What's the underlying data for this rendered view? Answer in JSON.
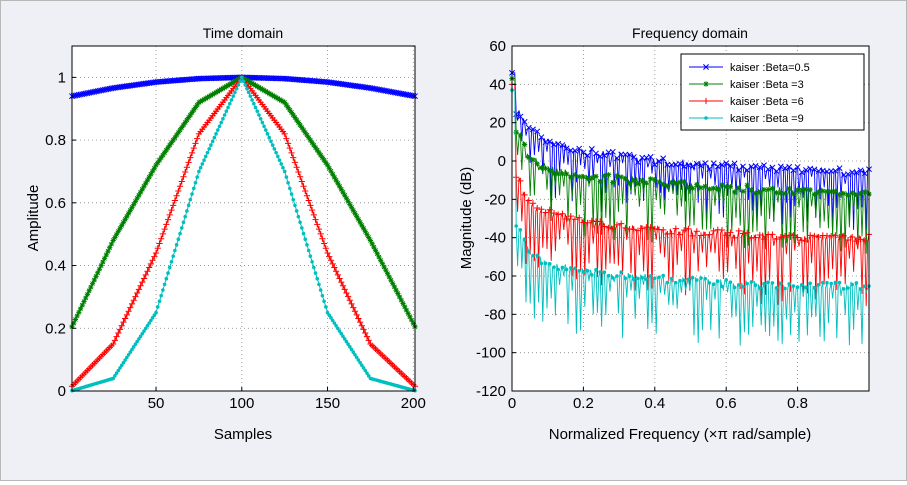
{
  "colors": {
    "beta_05": "#0000ff",
    "beta_3": "#008000",
    "beta_6": "#ff0000",
    "beta_9": "#00bfbf",
    "background": "#eef0f6"
  },
  "chart_data": [
    {
      "type": "line",
      "title": "Time domain",
      "xlabel": "Samples",
      "ylabel": "Amplitude",
      "xlim": [
        1,
        201
      ],
      "ylim": [
        0,
        1.1
      ],
      "xticks": [
        50,
        100,
        150,
        200
      ],
      "yticks": [
        0,
        0.2,
        0.4,
        0.6,
        0.8,
        1
      ],
      "grid": true,
      "x_range": [
        1,
        201
      ],
      "series": [
        {
          "name": "kaiser :Beta=0.5",
          "color": "#0000ff",
          "marker": "x",
          "values": {
            "x": [
              1,
              25,
              50,
              75,
              100,
              125,
              150,
              175,
              201
            ],
            "y": [
              0.94,
              0.966,
              0.985,
              0.996,
              1,
              0.996,
              0.985,
              0.966,
              0.94
            ]
          }
        },
        {
          "name": "kaiser :Beta =3",
          "color": "#008000",
          "marker": "*",
          "values": {
            "x": [
              1,
              25,
              50,
              75,
              100,
              125,
              150,
              175,
              201
            ],
            "y": [
              0.205,
              0.48,
              0.72,
              0.92,
              1,
              0.92,
              0.72,
              0.48,
              0.205
            ]
          }
        },
        {
          "name": "kaiser :Beta =6",
          "color": "#ff0000",
          "marker": "+",
          "values": {
            "x": [
              1,
              25,
              50,
              75,
              100,
              125,
              150,
              175,
              201
            ],
            "y": [
              0.015,
              0.15,
              0.44,
              0.82,
              1,
              0.82,
              0.44,
              0.15,
              0.015
            ]
          }
        },
        {
          "name": "kaiser :Beta =9",
          "color": "#00bfbf",
          "marker": ".",
          "values": {
            "x": [
              1,
              25,
              50,
              75,
              100,
              125,
              150,
              175,
              201
            ],
            "y": [
              0.001,
              0.04,
              0.25,
              0.7,
              1,
              0.7,
              0.25,
              0.04,
              0.001
            ]
          }
        }
      ]
    },
    {
      "type": "line",
      "title": "Frequency domain",
      "xlabel": "Normalized Frequency  (×π rad/sample)",
      "ylabel": "Magnitude (dB)",
      "xlim": [
        0,
        1
      ],
      "ylim": [
        -120,
        60
      ],
      "xticks": [
        0,
        0.2,
        0.4,
        0.6,
        0.8
      ],
      "yticks": [
        -120,
        -100,
        -80,
        -60,
        -40,
        -20,
        0,
        20,
        40,
        60
      ],
      "grid": true,
      "legend_position": "top-right",
      "series": [
        {
          "name": "kaiser :Beta=0.5",
          "color": "#0000ff",
          "marker": "x",
          "values": {
            "peak": 46,
            "envelope_x": [
              0.02,
              0.05,
              0.1,
              0.2,
              0.4,
              0.6,
              0.8,
              1.0
            ],
            "envelope_y": [
              28,
              18,
              12,
              7,
              2,
              -1,
              -3,
              -4
            ],
            "floor": -33
          }
        },
        {
          "name": "kaiser :Beta =3",
          "color": "#008000",
          "marker": "*",
          "values": {
            "peak": 43,
            "envelope_x": [
              0.02,
              0.05,
              0.1,
              0.2,
              0.4,
              0.6,
              0.8,
              1.0
            ],
            "envelope_y": [
              15,
              4,
              -2,
              -6,
              -9,
              -12,
              -14,
              -15
            ],
            "floor": -34
          }
        },
        {
          "name": "kaiser :Beta =6",
          "color": "#ff0000",
          "marker": "+",
          "values": {
            "peak": 40,
            "envelope_x": [
              0.02,
              0.05,
              0.1,
              0.2,
              0.4,
              0.6,
              0.8,
              1.0
            ],
            "envelope_y": [
              -8,
              -21,
              -25,
              -30,
              -34,
              -36,
              -38,
              -38
            ],
            "floor": -38
          }
        },
        {
          "name": "kaiser :Beta =9",
          "color": "#00bfbf",
          "marker": ".",
          "values": {
            "peak": 37,
            "envelope_x": [
              0.02,
              0.05,
              0.1,
              0.2,
              0.4,
              0.6,
              0.8,
              1.0
            ],
            "envelope_y": [
              -33,
              -46,
              -52,
              -56,
              -59,
              -62,
              -63,
              -63
            ],
            "floor": -35
          }
        }
      ]
    }
  ]
}
